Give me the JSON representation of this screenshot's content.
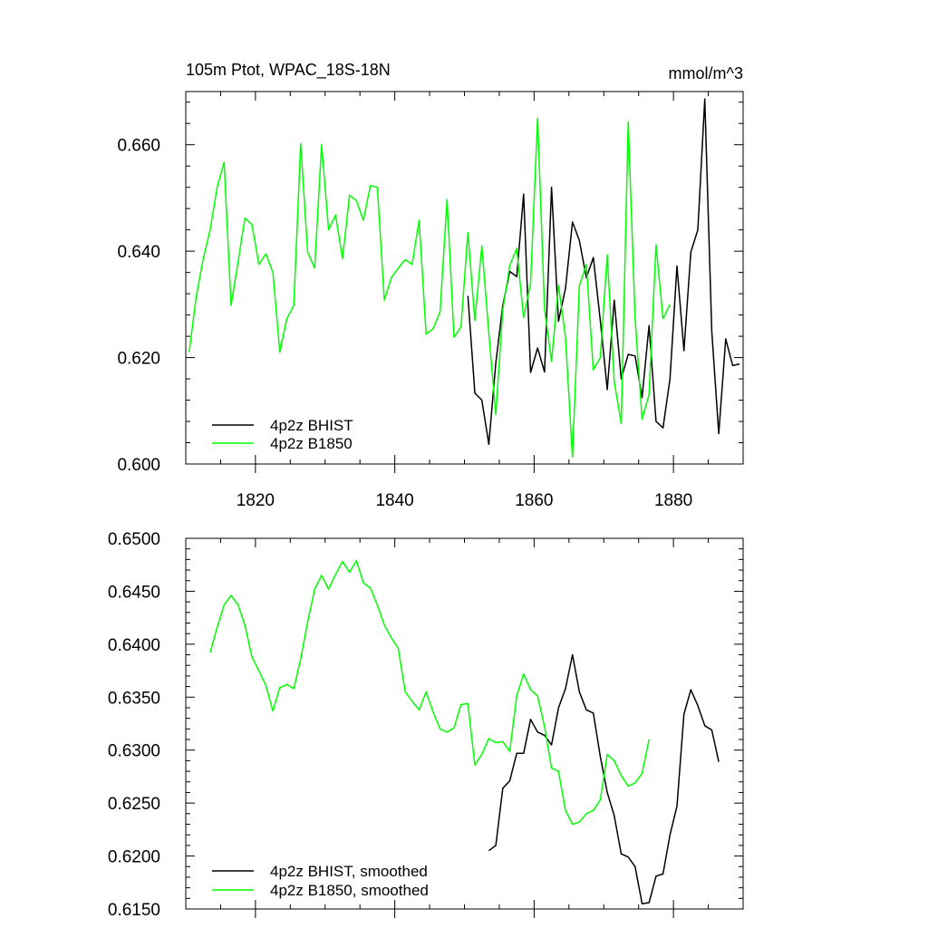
{
  "chart_data": [
    {
      "type": "line",
      "title": "105m Ptot, WPAC_18S-18N",
      "units": "mmol/m^3",
      "xlim": [
        1810,
        1890
      ],
      "ylim": [
        0.6,
        0.67
      ],
      "yticks": [
        0.6,
        0.62,
        0.64,
        0.66
      ],
      "ytick_labels": [
        "0.600",
        "0.620",
        "0.640",
        "0.660"
      ],
      "xticks": [
        1820,
        1840,
        1860,
        1880
      ],
      "xtick_labels": [
        "1820",
        "1840",
        "1860",
        "1880"
      ],
      "legend_position": "bottom-left",
      "series": [
        {
          "name": "4p2z BHIST",
          "color": "#000000",
          "x": [
            1850.5,
            1851.5,
            1852.5,
            1853.5,
            1854.5,
            1855.5,
            1856.5,
            1857.5,
            1858.5,
            1859.5,
            1860.5,
            1861.5,
            1862.5,
            1863.5,
            1864.5,
            1865.5,
            1866.5,
            1867.5,
            1868.5,
            1869.5,
            1870.5,
            1871.5,
            1872.5,
            1873.5,
            1874.5,
            1875.5,
            1876.5,
            1877.5,
            1878.5,
            1879.5,
            1880.5,
            1881.5,
            1882.5,
            1883.5,
            1884.5,
            1885.5,
            1886.5,
            1887.5,
            1888.5,
            1889.5
          ],
          "values": [
            0.6316,
            0.6133,
            0.612,
            0.6037,
            0.619,
            0.6298,
            0.6362,
            0.6352,
            0.6507,
            0.6172,
            0.6218,
            0.6173,
            0.652,
            0.6268,
            0.633,
            0.6455,
            0.642,
            0.635,
            0.6388,
            0.627,
            0.614,
            0.6308,
            0.616,
            0.6206,
            0.6203,
            0.6125,
            0.626,
            0.608,
            0.6068,
            0.616,
            0.6372,
            0.6213,
            0.6398,
            0.644,
            0.6686,
            0.625,
            0.6057,
            0.6235,
            0.6185,
            0.6188
          ]
        },
        {
          "name": "4p2z B1850",
          "color": "#00ff00",
          "x": [
            1810.5,
            1811.5,
            1812.5,
            1813.5,
            1814.5,
            1815.5,
            1816.5,
            1817.5,
            1818.5,
            1819.5,
            1820.5,
            1821.5,
            1822.5,
            1823.5,
            1824.5,
            1825.5,
            1826.5,
            1827.5,
            1828.5,
            1829.5,
            1830.5,
            1831.5,
            1832.5,
            1833.5,
            1834.5,
            1835.5,
            1836.5,
            1837.5,
            1838.5,
            1839.5,
            1840.5,
            1841.5,
            1842.5,
            1843.5,
            1844.5,
            1845.5,
            1846.5,
            1847.5,
            1848.5,
            1849.5,
            1850.5,
            1851.5,
            1852.5,
            1853.5,
            1854.5,
            1855.5,
            1856.5,
            1857.5,
            1858.5,
            1859.5,
            1860.5,
            1861.5,
            1862.5,
            1863.5,
            1864.5,
            1865.5,
            1866.5,
            1867.5,
            1868.5,
            1869.5,
            1870.5,
            1871.5,
            1872.5,
            1873.5,
            1874.5,
            1875.5,
            1876.5,
            1877.5,
            1878.5,
            1879.5
          ],
          "values": [
            0.621,
            0.6315,
            0.6385,
            0.644,
            0.652,
            0.6567,
            0.6298,
            0.638,
            0.6462,
            0.645,
            0.6375,
            0.6395,
            0.636,
            0.621,
            0.6273,
            0.6298,
            0.6602,
            0.6398,
            0.6368,
            0.66,
            0.644,
            0.6468,
            0.6386,
            0.6505,
            0.6495,
            0.6458,
            0.6523,
            0.652,
            0.6308,
            0.635,
            0.6368,
            0.6384,
            0.6375,
            0.6458,
            0.6244,
            0.6254,
            0.6286,
            0.6497,
            0.6238,
            0.6258,
            0.6435,
            0.627,
            0.641,
            0.6246,
            0.6093,
            0.629,
            0.6373,
            0.6405,
            0.6275,
            0.634,
            0.665,
            0.629,
            0.6193,
            0.6336,
            0.6238,
            0.6013,
            0.6335,
            0.6375,
            0.6177,
            0.62,
            0.6393,
            0.6155,
            0.6076,
            0.6643,
            0.6275,
            0.6084,
            0.613,
            0.6412,
            0.6273,
            0.63
          ]
        }
      ]
    },
    {
      "type": "line",
      "title": "",
      "xlim": [
        1810,
        1890
      ],
      "ylim": [
        0.615,
        0.65
      ],
      "yticks": [
        0.615,
        0.62,
        0.625,
        0.63,
        0.635,
        0.64,
        0.645,
        0.65
      ],
      "ytick_labels": [
        "0.6150",
        "0.6200",
        "0.6250",
        "0.6300",
        "0.6350",
        "0.6400",
        "0.6450",
        "0.6500"
      ],
      "xticks": [
        1820,
        1840,
        1860,
        1880
      ],
      "xtick_labels": [],
      "legend_position": "bottom-left",
      "series": [
        {
          "name": "4p2z BHIST, smoothed",
          "color": "#000000",
          "x": [
            1853.5,
            1854.5,
            1855.5,
            1856.5,
            1857.5,
            1858.5,
            1859.5,
            1860.5,
            1861.5,
            1862.5,
            1863.5,
            1864.5,
            1865.5,
            1866.5,
            1867.5,
            1868.5,
            1869.5,
            1870.5,
            1871.5,
            1872.5,
            1873.5,
            1874.5,
            1875.5,
            1876.5,
            1877.5,
            1878.5,
            1879.5,
            1880.5,
            1881.5,
            1882.5,
            1883.5,
            1884.5,
            1885.5,
            1886.5
          ],
          "values": [
            0.6205,
            0.621,
            0.6264,
            0.6271,
            0.6297,
            0.6297,
            0.6329,
            0.6317,
            0.6314,
            0.6305,
            0.634,
            0.6358,
            0.639,
            0.6355,
            0.6338,
            0.6335,
            0.6294,
            0.626,
            0.6238,
            0.6202,
            0.6199,
            0.619,
            0.6155,
            0.6156,
            0.6181,
            0.6183,
            0.622,
            0.6247,
            0.6334,
            0.6357,
            0.6342,
            0.6323,
            0.6319,
            0.6289
          ]
        },
        {
          "name": "4p2z B1850, smoothed",
          "color": "#00ff00",
          "x": [
            1813.5,
            1814.5,
            1815.5,
            1816.5,
            1817.5,
            1818.5,
            1819.5,
            1820.5,
            1821.5,
            1822.5,
            1823.5,
            1824.5,
            1825.5,
            1826.5,
            1827.5,
            1828.5,
            1829.5,
            1830.5,
            1831.5,
            1832.5,
            1833.5,
            1834.5,
            1835.5,
            1836.5,
            1837.5,
            1838.5,
            1839.5,
            1840.5,
            1841.5,
            1842.5,
            1843.5,
            1844.5,
            1845.5,
            1846.5,
            1847.5,
            1848.5,
            1849.5,
            1850.5,
            1851.5,
            1852.5,
            1853.5,
            1854.5,
            1855.5,
            1856.5,
            1857.5,
            1858.5,
            1859.5,
            1860.5,
            1861.5,
            1862.5,
            1863.5,
            1864.5,
            1865.5,
            1866.5,
            1867.5,
            1868.5,
            1869.5,
            1870.5,
            1871.5,
            1872.5,
            1873.5,
            1874.5,
            1875.5,
            1876.5
          ],
          "values": [
            0.6392,
            0.6416,
            0.6437,
            0.6446,
            0.6437,
            0.6418,
            0.6388,
            0.6375,
            0.6361,
            0.6337,
            0.6359,
            0.6362,
            0.6358,
            0.6386,
            0.6421,
            0.6452,
            0.6465,
            0.6452,
            0.6466,
            0.6478,
            0.6468,
            0.6479,
            0.6458,
            0.6453,
            0.6437,
            0.6418,
            0.6406,
            0.6396,
            0.6355,
            0.6346,
            0.6338,
            0.6355,
            0.6336,
            0.632,
            0.6317,
            0.6321,
            0.6343,
            0.6344,
            0.6286,
            0.6296,
            0.6311,
            0.6307,
            0.6308,
            0.6299,
            0.6351,
            0.6372,
            0.6357,
            0.6351,
            0.6322,
            0.6283,
            0.628,
            0.6243,
            0.623,
            0.6232,
            0.624,
            0.6243,
            0.6253,
            0.6296,
            0.629,
            0.6276,
            0.6266,
            0.6269,
            0.6278,
            0.631
          ]
        }
      ]
    }
  ]
}
